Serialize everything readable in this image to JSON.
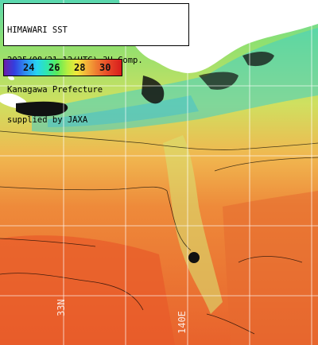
{
  "title_lines": [
    "HIMAWARI SST",
    "2025/08/21 12(UTC) 3H Comp.",
    "Kanagawa Prefecture",
    "supplied by JAXA"
  ],
  "colorbar": {
    "labels": [
      "24",
      "26",
      "28",
      "30"
    ],
    "colors": [
      "#6a1ea8",
      "#3340e0",
      "#27d4f0",
      "#5aeb5a",
      "#f0e83a",
      "#ee7a30",
      "#d81c1c"
    ]
  },
  "grid_labels": {
    "lon_140": "140E",
    "lat_33": "33N"
  },
  "colors": {
    "land": "#ffffff",
    "cloud": "#111111",
    "warm_sea": "#e8682e",
    "mid_sea": "#f0a040",
    "cool_sea": "#b8e050",
    "coolest_sea": "#30c8d8",
    "grid": "#ffffff"
  }
}
